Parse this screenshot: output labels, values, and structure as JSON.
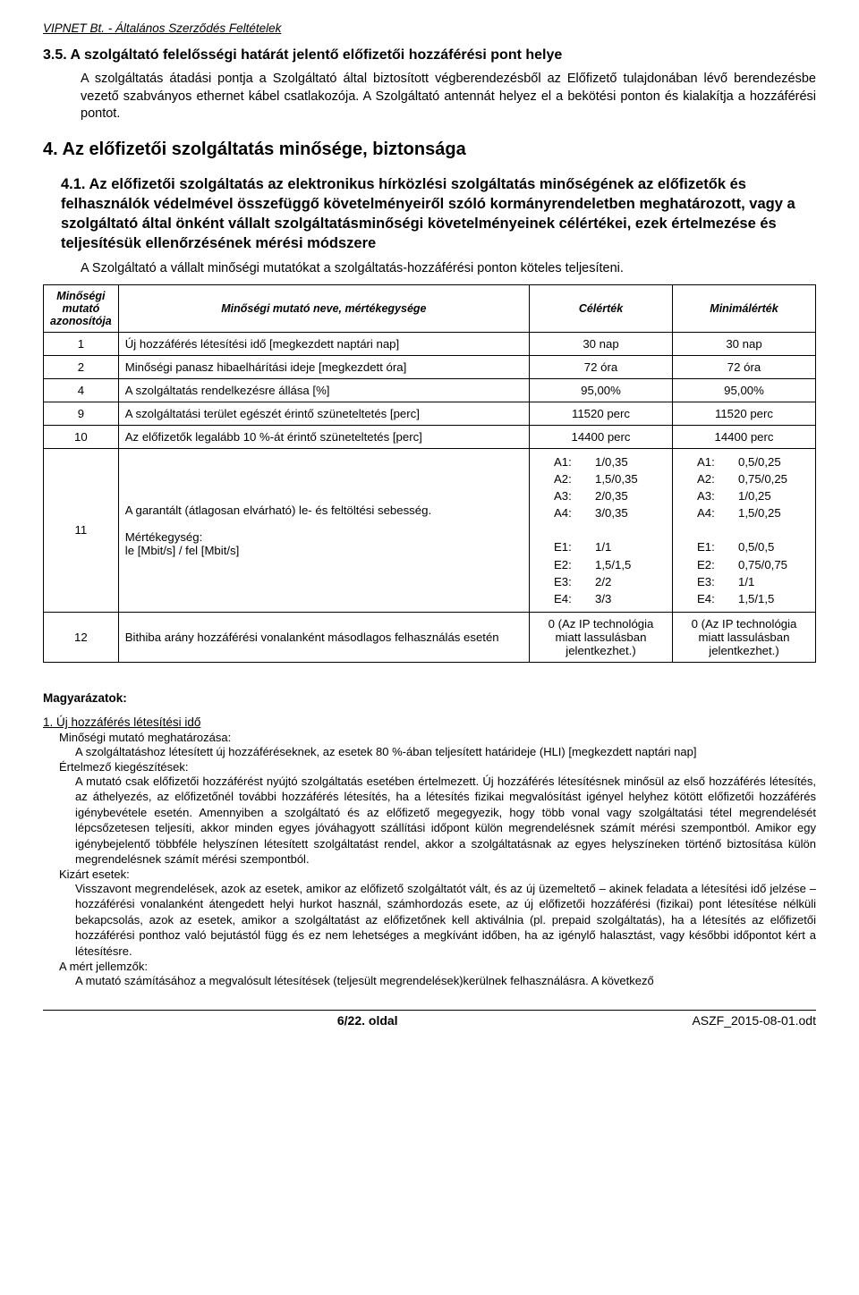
{
  "header": "VIPNET Bt. - Általános Szerződés Feltételek",
  "sec35": {
    "title": "3.5. A szolgáltató felelősségi határát jelentő előfizetői hozzáférési pont helye",
    "body": "A szolgáltatás átadási pontja a Szolgáltató által biztosított végberendezésből az Előfizető tulajdonában lévő berendezésbe vezető szabványos ethernet kábel csatlakozója. A Szolgáltató antennát helyez el a bekötési ponton és kialakítja a hozzáférési pontot."
  },
  "sec4": {
    "title": "4. Az előfizetői szolgáltatás minősége, biztonsága"
  },
  "sec41": {
    "title": "4.1. Az előfizetői szolgáltatás az elektronikus hírközlési szolgáltatás minőségének az előfizetők és felhasználók védelmével összefüggő követelményeiről szóló kormányrendeletben meghatározott, vagy a szolgáltató által önként vállalt szolgáltatásminőségi követelményeinek célértékei, ezek értelmezése és teljesítésük ellenőrzésének mérési módszere",
    "body": "A Szolgáltató a vállalt minőségi mutatókat a szolgáltatás-hozzáférési ponton köteles teljesíteni."
  },
  "table": {
    "columns": [
      "Minőségi mutató azonosítója",
      "Minőségi mutató neve, mértékegysége",
      "Célérték",
      "Minimálérték"
    ],
    "rows": [
      {
        "id": "1",
        "name": "Új hozzáférés létesítési idő [megkezdett naptári nap]",
        "target": "30 nap",
        "min": "30 nap"
      },
      {
        "id": "2",
        "name": "Minőségi panasz hibaelhárítási ideje [megkezdett óra]",
        "target": "72 óra",
        "min": "72 óra"
      },
      {
        "id": "4",
        "name": "A szolgáltatás rendelkezésre állása [%]",
        "target": "95,00%",
        "min": "95,00%"
      },
      {
        "id": "9",
        "name": "A szolgáltatási terület egészét érintő szüneteltetés [perc]",
        "target": "11520 perc",
        "min": "11520 perc"
      },
      {
        "id": "10",
        "name": "Az előfizetők legalább 10 %-át érintő szüneteltetés [perc]",
        "target": "14400 perc",
        "min": "14400 perc"
      }
    ],
    "row11": {
      "id": "11",
      "desc_l1": "A garantált (átlagosan elvárható) le- és feltöltési sebesség.",
      "desc_l2": "Mértékegység:",
      "desc_l3": "le [Mbit/s] / fel [Mbit/s]",
      "target": [
        {
          "l": "A1:",
          "v": "1/0,35"
        },
        {
          "l": "A2:",
          "v": "1,5/0,35"
        },
        {
          "l": "A3:",
          "v": "2/0,35"
        },
        {
          "l": "A4:",
          "v": "3/0,35"
        },
        {
          "l": "",
          "v": ""
        },
        {
          "l": "E1:",
          "v": "1/1"
        },
        {
          "l": "E2:",
          "v": "1,5/1,5"
        },
        {
          "l": "E3:",
          "v": "2/2"
        },
        {
          "l": "E4:",
          "v": "3/3"
        }
      ],
      "min": [
        {
          "l": "A1:",
          "v": "0,5/0,25"
        },
        {
          "l": "A2:",
          "v": "0,75/0,25"
        },
        {
          "l": "A3:",
          "v": "1/0,25"
        },
        {
          "l": "A4:",
          "v": "1,5/0,25"
        },
        {
          "l": "",
          "v": ""
        },
        {
          "l": "E1:",
          "v": "0,5/0,5"
        },
        {
          "l": "E2:",
          "v": "0,75/0,75"
        },
        {
          "l": "E3:",
          "v": "1/1"
        },
        {
          "l": "E4:",
          "v": "1,5/1,5"
        }
      ]
    },
    "row12": {
      "id": "12",
      "name": "Bithiba arány hozzáférési vonalanként másodlagos felhasználás esetén",
      "target": "0 (Az IP technológia miatt lassulásban jelentkezhet.)",
      "min": "0 (Az IP technológia miatt lassulásban jelentkezhet.)"
    }
  },
  "mag": {
    "title": "Magyarázatok:",
    "num": "1. Új hozzáférés létesítési idő",
    "sub1": "Minőségi mutató meghatározása:",
    "body1": "A szolgáltatáshoz létesített új hozzáféréseknek, az esetek 80 %-ában teljesített határideje (HLI) [megkezdett naptári nap]",
    "sub2": "Értelmező kiegészítések:",
    "body2": "A mutató csak előfizetői hozzáférést nyújtó szolgáltatás esetében értelmezett. Új hozzáférés létesítésnek minősül az első hozzáférés létesítés, az áthelyezés, az előfizetőnél további hozzáférés létesítés, ha a létesítés fizikai megvalósítást igényel helyhez kötött előfizetői hozzáférés igénybevétele esetén. Amennyiben a szolgáltató és az előfizető megegyezik, hogy több vonal vagy szolgáltatási tétel megrendelését lépcsőzetesen teljesíti, akkor minden egyes jóváhagyott szállítási időpont külön megrendelésnek számít mérési szempontból. Amikor egy igénybejelentő többféle helyszínen létesített szolgáltatást rendel, akkor a szolgáltatásnak az egyes helyszíneken történő biztosítása külön megrendelésnek számít mérési szempontból.",
    "sub3": "Kizárt esetek:",
    "body3": "Visszavont megrendelések, azok az esetek, amikor az előfizető szolgáltatót vált, és az új üzemeltető – akinek feladata a létesítési idő jelzése – hozzáférési vonalanként átengedett helyi hurkot használ, számhordozás esete, az új előfizetői hozzáférési (fizikai) pont létesítése nélküli bekapcsolás, azok az esetek, amikor a szolgáltatást az előfizetőnek kell aktiválnia (pl. prepaid szolgáltatás), ha a létesítés az előfizetői hozzáférési ponthoz való bejutástól függ és ez nem lehetséges a megkívánt időben, ha az igénylő halasztást, vagy későbbi időpontot kért a létesítésre.",
    "sub4": "A mért jellemzők:",
    "body4": "A mutató számításához a megvalósult létesítések (teljesült megrendelések)kerülnek felhasználásra. A következő"
  },
  "footer": {
    "left": "",
    "mid": "6/22. oldal",
    "right": "ASZF_2015-08-01.odt"
  }
}
